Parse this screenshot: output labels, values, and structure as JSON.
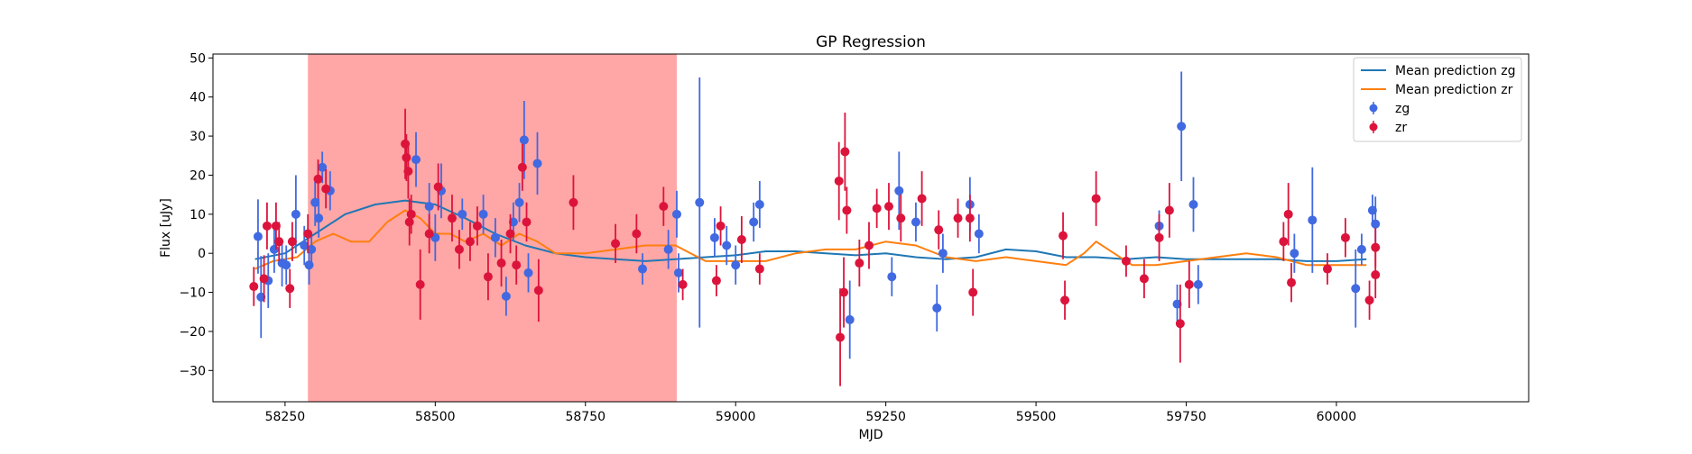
{
  "chart_data": {
    "type": "scatter",
    "title": "GP Regression",
    "xlabel": "MJD",
    "ylabel": "Flux [uJy]",
    "xlim": [
      58130,
      60320
    ],
    "ylim": [
      -38,
      51
    ],
    "xticks": [
      58250,
      58500,
      58750,
      59000,
      59250,
      59500,
      59750,
      60000
    ],
    "yticks": [
      -30,
      -20,
      -10,
      0,
      10,
      20,
      30,
      40,
      50
    ],
    "grid": false,
    "legend_position": "top-right",
    "shaded_region": {
      "x_start": 58288,
      "x_end": 58902,
      "color": "#ff9c9c"
    },
    "colors": {
      "zg_line": "#1f77b4",
      "zr_line": "#ff7f0e",
      "zg_points": "#4169e1",
      "zr_points": "#dc143c"
    },
    "lines": [
      {
        "name": "Mean prediction zg",
        "color": "#1f77b4",
        "x": [
          58200,
          58250,
          58300,
          58350,
          58400,
          58450,
          58500,
          58550,
          58600,
          58650,
          58700,
          58750,
          58800,
          58850,
          58900,
          58950,
          59000,
          59050,
          59100,
          59150,
          59200,
          59250,
          59300,
          59350,
          59400,
          59450,
          59500,
          59550,
          59600,
          59650,
          59700,
          59750,
          59800,
          59850,
          59900,
          59950,
          60000,
          60050
        ],
        "y": [
          -1.5,
          0,
          5,
          10,
          12.5,
          13.5,
          12.5,
          9,
          5,
          2,
          0,
          -1,
          -1.5,
          -2,
          -1.5,
          -1,
          -0.5,
          0.5,
          0.5,
          0,
          -0.5,
          0,
          -1,
          -1.5,
          -1,
          1,
          0.5,
          -1,
          -1,
          -1.5,
          -1,
          -1.5,
          -1.5,
          -1.5,
          -1.5,
          -2,
          -2,
          -1.5
        ]
      },
      {
        "name": "Mean prediction zr",
        "color": "#ff7f0e",
        "x": [
          58200,
          58230,
          58270,
          58300,
          58330,
          58360,
          58390,
          58420,
          58450,
          58475,
          58500,
          58525,
          58550,
          58580,
          58610,
          58640,
          58670,
          58700,
          58750,
          58800,
          58850,
          58900,
          58950,
          59000,
          59050,
          59100,
          59150,
          59200,
          59250,
          59300,
          59350,
          59400,
          59450,
          59500,
          59550,
          59580,
          59600,
          59630,
          59660,
          59700,
          59750,
          59800,
          59850,
          59900,
          59950,
          60000,
          60050
        ],
        "y": [
          -4,
          -2,
          -1,
          3,
          5,
          3,
          3,
          8,
          11,
          9,
          5,
          5,
          3,
          5,
          2,
          5,
          3,
          0,
          0,
          1,
          2,
          2,
          -2,
          -2,
          -2,
          0,
          1,
          1,
          3,
          2,
          -1,
          -2,
          -1,
          -2,
          -3,
          0,
          3,
          0,
          -3,
          -3,
          -2,
          -1,
          0,
          -1,
          -3,
          -3,
          -3
        ]
      }
    ],
    "series": [
      {
        "name": "zg",
        "color": "#4169e1",
        "points": [
          {
            "x": 58205,
            "y": 4.3,
            "err": 9.5
          },
          {
            "x": 58210,
            "y": -11.2,
            "err": 10.5
          },
          {
            "x": 58222,
            "y": -7,
            "err": 7
          },
          {
            "x": 58232,
            "y": 1,
            "err": 6
          },
          {
            "x": 58245,
            "y": -2.5,
            "err": 6
          },
          {
            "x": 58252,
            "y": -3,
            "err": 5
          },
          {
            "x": 58268,
            "y": 10,
            "err": 10
          },
          {
            "x": 58282,
            "y": 2,
            "err": 5
          },
          {
            "x": 58290,
            "y": -3,
            "err": 5
          },
          {
            "x": 58294,
            "y": 1,
            "err": 4
          },
          {
            "x": 58300,
            "y": 13,
            "err": 6
          },
          {
            "x": 58306,
            "y": 9,
            "err": 5
          },
          {
            "x": 58312,
            "y": 22,
            "err": 4
          },
          {
            "x": 58325,
            "y": 16,
            "err": 5
          },
          {
            "x": 58468,
            "y": 24,
            "err": 7
          },
          {
            "x": 58490,
            "y": 12,
            "err": 6
          },
          {
            "x": 58500,
            "y": 4,
            "err": 6
          },
          {
            "x": 58510,
            "y": 16,
            "err": 7
          },
          {
            "x": 58545,
            "y": 10,
            "err": 4
          },
          {
            "x": 58580,
            "y": 10,
            "err": 5
          },
          {
            "x": 58600,
            "y": 4,
            "err": 5
          },
          {
            "x": 58618,
            "y": -11,
            "err": 5
          },
          {
            "x": 58630,
            "y": 8,
            "err": 5
          },
          {
            "x": 58640,
            "y": 13,
            "err": 5
          },
          {
            "x": 58648,
            "y": 29,
            "err": 10
          },
          {
            "x": 58655,
            "y": -5,
            "err": 5
          },
          {
            "x": 58670,
            "y": 23,
            "err": 8
          },
          {
            "x": 58845,
            "y": -4,
            "err": 4
          },
          {
            "x": 58888,
            "y": 1,
            "err": 5
          },
          {
            "x": 58902,
            "y": 10,
            "err": 6
          },
          {
            "x": 58905,
            "y": -5,
            "err": 5
          },
          {
            "x": 58940,
            "y": 13,
            "err": 32
          },
          {
            "x": 58965,
            "y": 4,
            "err": 5
          },
          {
            "x": 58985,
            "y": 2,
            "err": 5
          },
          {
            "x": 59000,
            "y": -3,
            "err": 5
          },
          {
            "x": 59030,
            "y": 8,
            "err": 5
          },
          {
            "x": 59040,
            "y": 12.5,
            "err": 6
          },
          {
            "x": 59190,
            "y": -17,
            "err": 10
          },
          {
            "x": 59260,
            "y": -6,
            "err": 5
          },
          {
            "x": 59272,
            "y": 16,
            "err": 10
          },
          {
            "x": 59300,
            "y": 8,
            "err": 5
          },
          {
            "x": 59335,
            "y": -14,
            "err": 6
          },
          {
            "x": 59345,
            "y": 0,
            "err": 5
          },
          {
            "x": 59390,
            "y": 12.5,
            "err": 7
          },
          {
            "x": 59405,
            "y": 5,
            "err": 5
          },
          {
            "x": 59705,
            "y": 7,
            "err": 4
          },
          {
            "x": 59735,
            "y": -13,
            "err": 5
          },
          {
            "x": 59742,
            "y": 32.5,
            "err": 14
          },
          {
            "x": 59762,
            "y": 12.5,
            "err": 7
          },
          {
            "x": 59770,
            "y": -8,
            "err": 5
          },
          {
            "x": 59930,
            "y": 0,
            "err": 5
          },
          {
            "x": 59960,
            "y": 8.5,
            "err": 13.5
          },
          {
            "x": 60032,
            "y": -9,
            "err": 10
          },
          {
            "x": 60042,
            "y": 1,
            "err": 4
          },
          {
            "x": 60060,
            "y": 11,
            "err": 4
          },
          {
            "x": 60065,
            "y": 7.5,
            "err": 7
          }
        ]
      },
      {
        "name": "zr",
        "color": "#dc143c",
        "points": [
          {
            "x": 58198,
            "y": -8.5,
            "err": 5
          },
          {
            "x": 58215,
            "y": -6.5,
            "err": 6
          },
          {
            "x": 58220,
            "y": 7,
            "err": 6
          },
          {
            "x": 58235,
            "y": 7,
            "err": 6
          },
          {
            "x": 58240,
            "y": 3,
            "err": 5
          },
          {
            "x": 58258,
            "y": -9,
            "err": 5
          },
          {
            "x": 58262,
            "y": 3,
            "err": 5
          },
          {
            "x": 58288,
            "y": 5,
            "err": 5
          },
          {
            "x": 58305,
            "y": 19,
            "err": 5
          },
          {
            "x": 58318,
            "y": 16.5,
            "err": 5
          },
          {
            "x": 58450,
            "y": 28,
            "err": 9
          },
          {
            "x": 58452,
            "y": 24.5,
            "err": 6
          },
          {
            "x": 58455,
            "y": 21,
            "err": 7
          },
          {
            "x": 58457,
            "y": 8,
            "err": 6
          },
          {
            "x": 58460,
            "y": 10,
            "err": 5
          },
          {
            "x": 58475,
            "y": -8,
            "err": 9
          },
          {
            "x": 58490,
            "y": 5,
            "err": 5
          },
          {
            "x": 58505,
            "y": 17,
            "err": 6
          },
          {
            "x": 58528,
            "y": 9,
            "err": 6
          },
          {
            "x": 58540,
            "y": 1,
            "err": 5
          },
          {
            "x": 58558,
            "y": 3,
            "err": 5
          },
          {
            "x": 58570,
            "y": 7,
            "err": 5
          },
          {
            "x": 58588,
            "y": -6,
            "err": 6
          },
          {
            "x": 58610,
            "y": -2.5,
            "err": 6
          },
          {
            "x": 58625,
            "y": 5,
            "err": 5
          },
          {
            "x": 58635,
            "y": -3,
            "err": 5
          },
          {
            "x": 58645,
            "y": 22,
            "err": 6
          },
          {
            "x": 58652,
            "y": 8,
            "err": 5
          },
          {
            "x": 58672,
            "y": -9.5,
            "err": 8
          },
          {
            "x": 58730,
            "y": 13,
            "err": 7
          },
          {
            "x": 58800,
            "y": 2.5,
            "err": 5
          },
          {
            "x": 58835,
            "y": 5,
            "err": 5
          },
          {
            "x": 58880,
            "y": 12,
            "err": 5
          },
          {
            "x": 58912,
            "y": -8,
            "err": 4
          },
          {
            "x": 58968,
            "y": -7,
            "err": 4
          },
          {
            "x": 58975,
            "y": 7,
            "err": 5
          },
          {
            "x": 59010,
            "y": 3.5,
            "err": 6
          },
          {
            "x": 59040,
            "y": -4,
            "err": 4
          },
          {
            "x": 59172,
            "y": 18.5,
            "err": 10
          },
          {
            "x": 59174,
            "y": -21.5,
            "err": 12.5
          },
          {
            "x": 59180,
            "y": -10,
            "err": 9
          },
          {
            "x": 59182,
            "y": 26,
            "err": 10
          },
          {
            "x": 59185,
            "y": 11,
            "err": 6
          },
          {
            "x": 59206,
            "y": -2.5,
            "err": 6
          },
          {
            "x": 59222,
            "y": 2,
            "err": 6
          },
          {
            "x": 59235,
            "y": 11.5,
            "err": 5
          },
          {
            "x": 59255,
            "y": 12,
            "err": 6
          },
          {
            "x": 59275,
            "y": 9,
            "err": 6
          },
          {
            "x": 59310,
            "y": 14,
            "err": 7
          },
          {
            "x": 59338,
            "y": 6,
            "err": 5
          },
          {
            "x": 59370,
            "y": 9,
            "err": 5
          },
          {
            "x": 59390,
            "y": 9,
            "err": 6
          },
          {
            "x": 59395,
            "y": -10,
            "err": 6
          },
          {
            "x": 59545,
            "y": 4.5,
            "err": 6
          },
          {
            "x": 59548,
            "y": -12,
            "err": 5
          },
          {
            "x": 59600,
            "y": 14,
            "err": 7
          },
          {
            "x": 59650,
            "y": -2,
            "err": 4
          },
          {
            "x": 59680,
            "y": -6.5,
            "err": 5
          },
          {
            "x": 59705,
            "y": 4,
            "err": 6
          },
          {
            "x": 59722,
            "y": 11,
            "err": 7
          },
          {
            "x": 59740,
            "y": -18,
            "err": 10
          },
          {
            "x": 59755,
            "y": -8,
            "err": 6
          },
          {
            "x": 59912,
            "y": 3,
            "err": 5
          },
          {
            "x": 59920,
            "y": 10,
            "err": 8
          },
          {
            "x": 59925,
            "y": -7.5,
            "err": 5
          },
          {
            "x": 59985,
            "y": -4,
            "err": 4
          },
          {
            "x": 60015,
            "y": 4,
            "err": 5
          },
          {
            "x": 60055,
            "y": -12,
            "err": 5
          },
          {
            "x": 60065,
            "y": -5.5,
            "err": 6
          },
          {
            "x": 60065,
            "y": 1.5,
            "err": 5
          }
        ]
      }
    ]
  }
}
